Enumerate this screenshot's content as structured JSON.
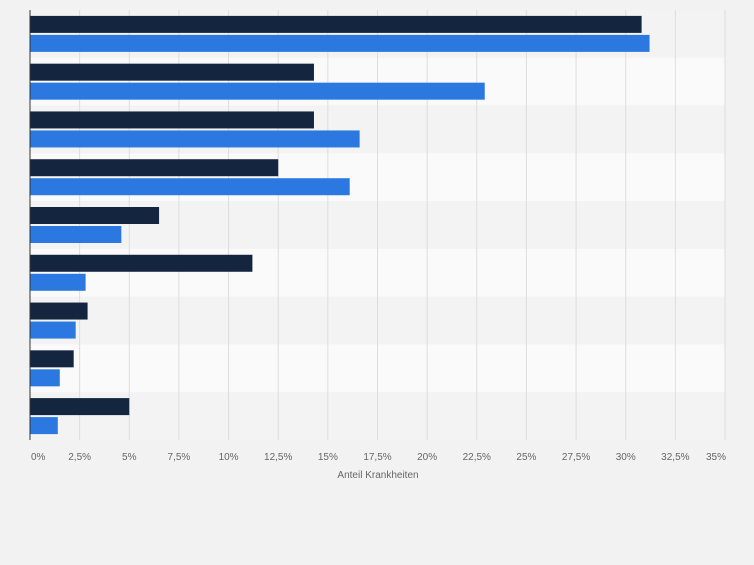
{
  "chart_data": {
    "type": "bar",
    "orientation": "horizontal",
    "categories": [
      "",
      "",
      "",
      "",
      "",
      "",
      "",
      "",
      ""
    ],
    "series": [
      {
        "values": [
          30.8,
          14.3,
          14.3,
          12.5,
          6.5,
          11.2,
          2.9,
          2.2,
          5.0
        ]
      },
      {
        "values": [
          31.2,
          22.9,
          16.6,
          16.1,
          4.6,
          2.8,
          2.3,
          1.5,
          1.4
        ]
      }
    ],
    "xlabel": "Anteil Krankheiten",
    "xlim": [
      0,
      35
    ],
    "ticks": [
      0,
      2.5,
      5,
      7.5,
      10,
      12.5,
      15,
      17.5,
      20,
      22.5,
      25,
      27.5,
      30,
      32.5,
      35
    ],
    "tick_labels": [
      "0%",
      "2,5%",
      "5%",
      "7,5%",
      "10%",
      "12,5%",
      "15%",
      "17,5%",
      "20%",
      "22,5%",
      "25%",
      "27,5%",
      "30%",
      "32,5%",
      "35%"
    ],
    "grid": true,
    "legend": "none",
    "colors": {
      "series_1": "#14263f",
      "series_2": "#2a78e0",
      "band_even": "#f3f3f3",
      "band_odd": "#fafafa",
      "grid": "#dddddd",
      "axis": "#333333",
      "text": "#666666"
    }
  }
}
